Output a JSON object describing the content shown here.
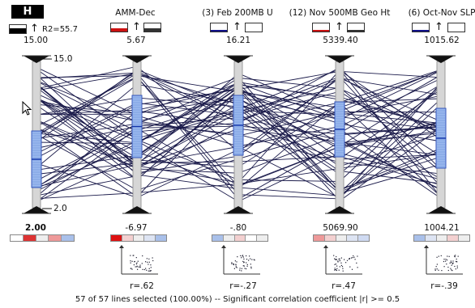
{
  "axes": [
    {
      "title": "H",
      "top_value": "15.00",
      "bottom_value": "2.00",
      "r2": "R2=55.7",
      "tick_top": "15.0",
      "tick_bottom": "2.0",
      "r": ""
    },
    {
      "title": "AMM-Dec",
      "top_value": "5.67",
      "bottom_value": "-6.97",
      "r": "r=.62"
    },
    {
      "title": "(3) Feb 200MB U",
      "top_value": "16.21",
      "bottom_value": "-.80",
      "r": "r=-.27"
    },
    {
      "title": "(12) Nov 500MB Geo Ht",
      "top_value": "5339.40",
      "bottom_value": "5069.90",
      "r": "r=.47"
    },
    {
      "title": "(6) Oct-Nov SLP",
      "top_value": "1015.62",
      "bottom_value": "1004.21",
      "r": "r=-.39"
    }
  ],
  "swatch_colors": [
    "#000000",
    "#cc1111",
    "#11118a",
    "#cc1111",
    "#11118a"
  ],
  "line_color": "#1a1a4a",
  "selection_color": "#9ab8ee",
  "footer": "57 of 57 lines selected (100.00%)  -- Significant correlation coefficient  |r| >= 0.5",
  "arrow_glyph": "↑"
}
